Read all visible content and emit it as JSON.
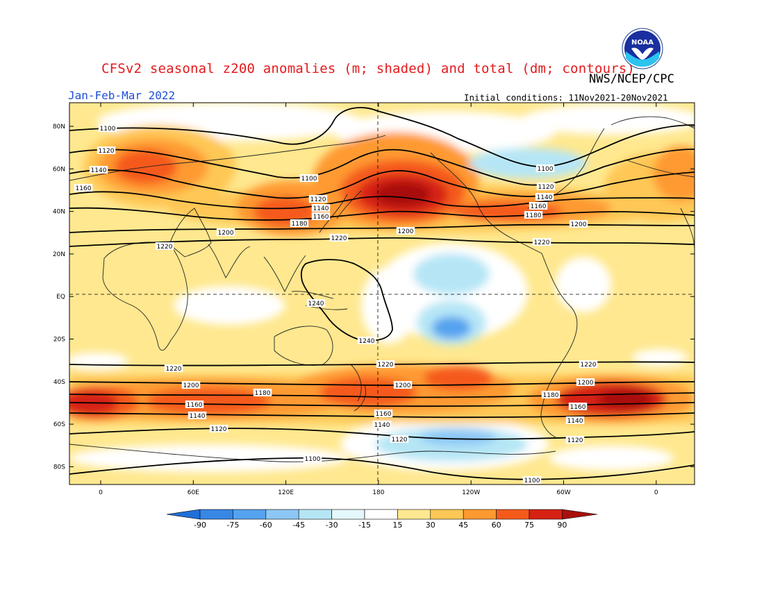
{
  "title": "CFSv2 seasonal z200 anomalies (m; shaded) and total (dm; contours)",
  "agency": "NWS/NCEP/CPC",
  "season": "Jan-Feb-Mar 2022",
  "initial_conditions": "Initial conditions: 11Nov2021-20Nov2021",
  "logo_text": "NOAA",
  "lat_ticks": [
    "80N",
    "60N",
    "40N",
    "20N",
    "EQ",
    "20S",
    "40S",
    "60S",
    "80S"
  ],
  "lon_ticks": [
    "0",
    "60E",
    "120E",
    "180",
    "120W",
    "60W",
    "0"
  ],
  "colorbar": {
    "labels": [
      "-90",
      "-75",
      "-60",
      "-45",
      "-30",
      "-15",
      "15",
      "30",
      "45",
      "60",
      "75",
      "90"
    ],
    "colors": [
      "#1f6fd8",
      "#3787e6",
      "#55a2ef",
      "#8cc7f5",
      "#b6e6f6",
      "#e4f7fb",
      "#ffffff",
      "#ffe88f",
      "#ffc755",
      "#ff9a30",
      "#f55a1a",
      "#d62214",
      "#a8100b"
    ]
  },
  "contour_labels": [
    "1100",
    "1120",
    "1140",
    "1160",
    "1180",
    "1200",
    "1220",
    "1240"
  ],
  "chart_data": {
    "type": "heatmap",
    "title": "CFSv2 seasonal z200 anomalies (m; shaded) and total (dm; contours)",
    "anomaly_units": "m",
    "contour_units": "dm",
    "contour_levels": [
      1100,
      1120,
      1140,
      1160,
      1180,
      1200,
      1220,
      1240
    ],
    "anomaly_levels": [
      -90,
      -75,
      -60,
      -45,
      -30,
      -15,
      15,
      30,
      45,
      60,
      75,
      90
    ],
    "lat_range": [
      -90,
      90
    ],
    "lon_range": [
      -20,
      340
    ]
  }
}
